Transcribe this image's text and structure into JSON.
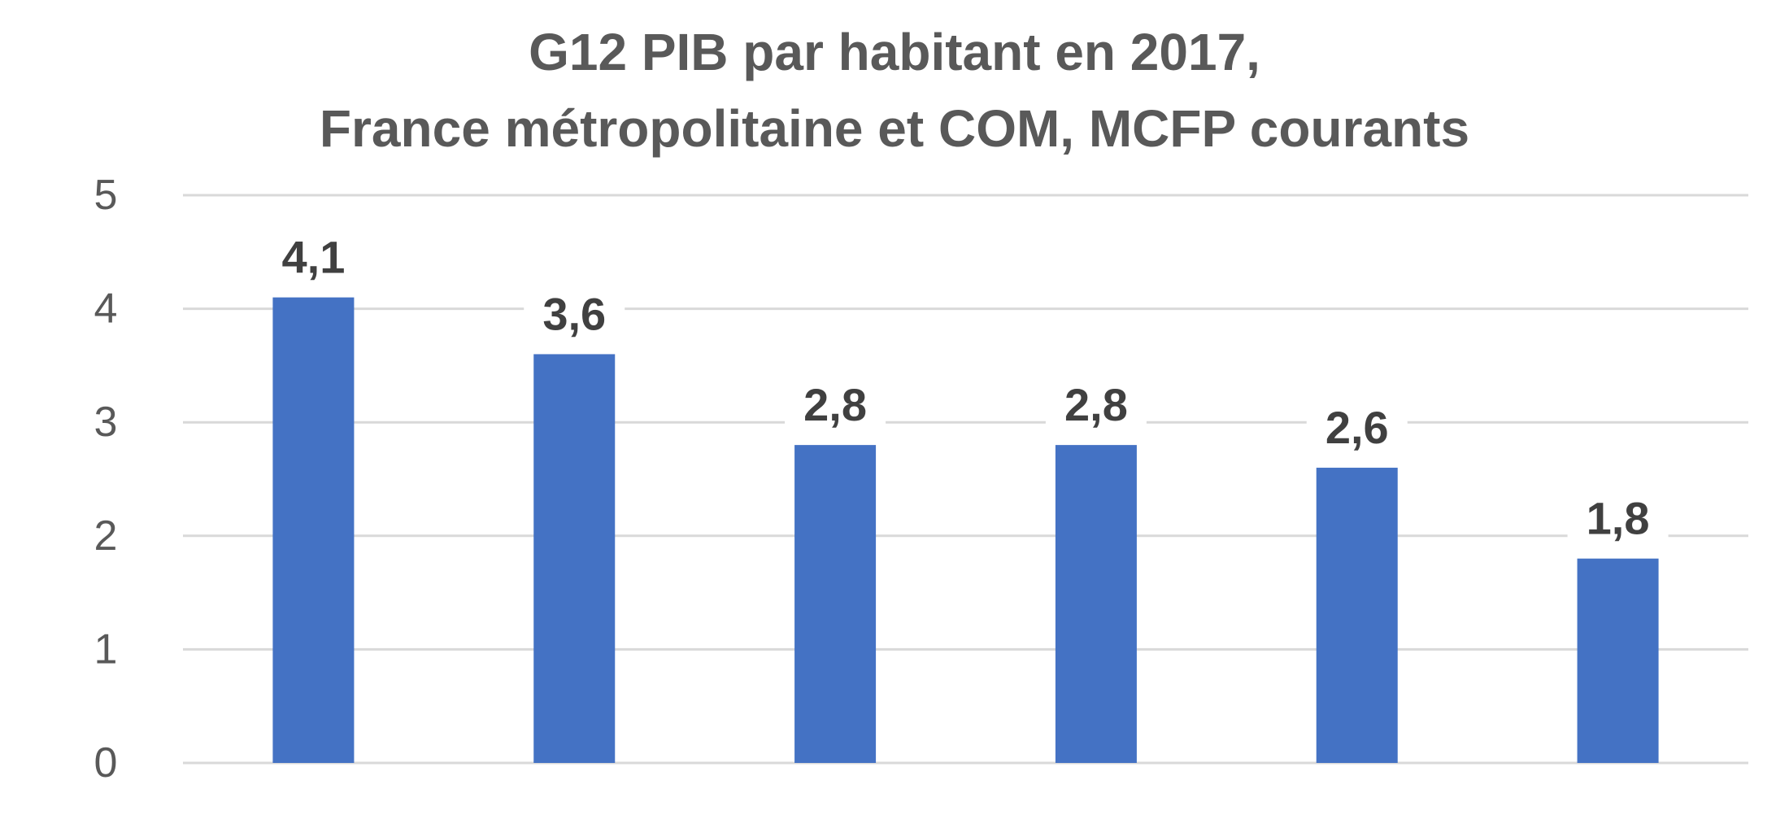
{
  "chart_data": {
    "type": "bar",
    "title_line_1": "G12   PIB par habitant en 2017,",
    "title_line_2": "France métropolitaine et COM, MCFP courants",
    "xlabel": "",
    "ylabel": "",
    "categories": [
      "",
      "",
      "",
      "",
      "",
      ""
    ],
    "values": [
      4.1,
      3.6,
      2.8,
      2.8,
      2.6,
      1.8
    ],
    "value_labels": [
      "4,1",
      "3,6",
      "2,8",
      "2,8",
      "2,6",
      "1,8"
    ],
    "ylim": [
      0,
      5
    ],
    "yticks": [
      0,
      1,
      2,
      3,
      4,
      5
    ],
    "ytick_labels": [
      "0",
      "1",
      "2",
      "3",
      "4",
      "5"
    ],
    "grid": true,
    "bar_color": "#4472C4",
    "grid_color": "#D9D9D9"
  }
}
